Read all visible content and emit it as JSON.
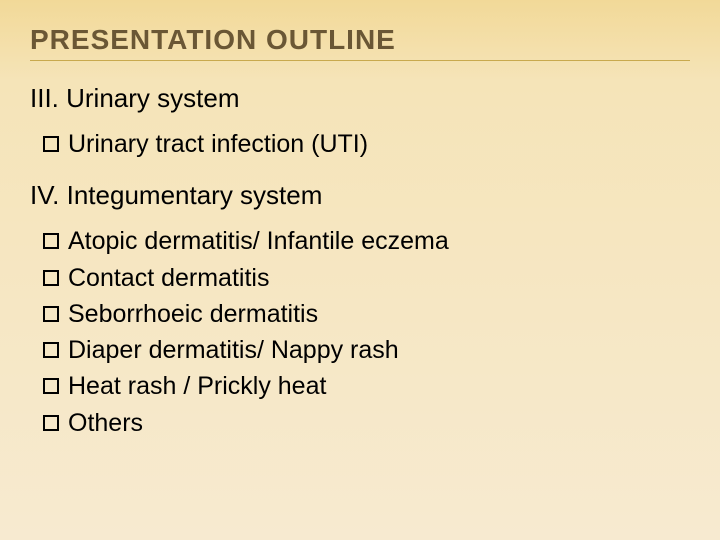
{
  "colors": {
    "title_text": "#6a5735",
    "rule": "#c8a94e",
    "body_text": "#000000",
    "bg_top": "#f2d998",
    "bg_mid": "#f5e4b8",
    "bg_bottom": "#f7ead0"
  },
  "typography": {
    "title_fontsize": 28,
    "title_letter_spacing": 1,
    "section_fontsize": 26,
    "bullet_fontsize": 25,
    "font_family": "Arial"
  },
  "title": "PRESENTATION OUTLINE",
  "sections": [
    {
      "heading": "III. Urinary system",
      "items": [
        "Urinary tract infection (UTI)"
      ]
    },
    {
      "heading": "IV. Integumentary system",
      "items": [
        "Atopic dermatitis/ Infantile eczema",
        "Contact dermatitis",
        "Seborrhoeic dermatitis",
        "Diaper dermatitis/ Nappy rash",
        "Heat rash / Prickly heat",
        "Others"
      ]
    }
  ]
}
